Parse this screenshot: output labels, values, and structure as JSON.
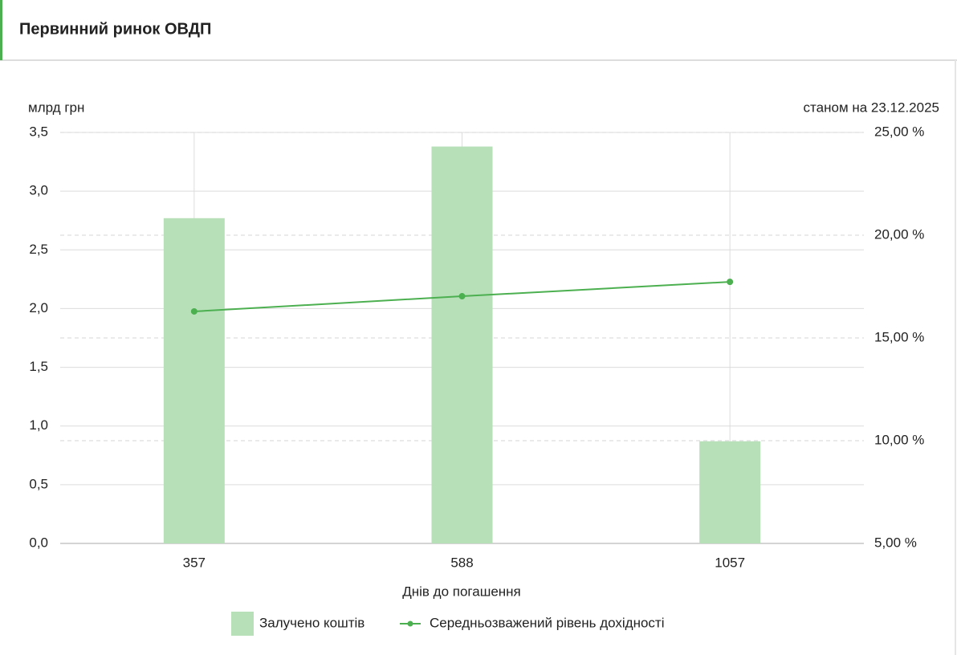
{
  "chart_data": {
    "type": "bar",
    "title": "Первинний ринок ОВДП",
    "y_label": "млрд грн",
    "annotation": "станом на 23.12.2025",
    "x_label": "Днів до погашення",
    "categories": [
      "357",
      "588",
      "1057"
    ],
    "series": [
      {
        "name": "Залучено коштів",
        "type": "bar",
        "color": "#b7e0b9",
        "values": [
          2.77,
          3.38,
          0.87
        ]
      },
      {
        "name": "Середньозважений рівень дохідності",
        "type": "line",
        "color": "#4caf50",
        "axis": "y2",
        "values": [
          16.29,
          17.03,
          17.73
        ]
      }
    ],
    "ylim": [
      0,
      3.5
    ],
    "yticks": [
      {
        "value": 0,
        "label": "0,0"
      },
      {
        "value": 0.5,
        "label": "0,5"
      },
      {
        "value": 1,
        "label": "1,0"
      },
      {
        "value": 1.5,
        "label": "1,5"
      },
      {
        "value": 2,
        "label": "2,0"
      },
      {
        "value": 2.5,
        "label": "2,5"
      },
      {
        "value": 3,
        "label": "3,0"
      },
      {
        "value": 3.5,
        "label": "3,5"
      }
    ],
    "y2lim": [
      5,
      25
    ],
    "y2ticks": [
      {
        "value": 5,
        "label": "5,00 %"
      },
      {
        "value": 10,
        "label": "10,00 %"
      },
      {
        "value": 15,
        "label": "15,00 %"
      },
      {
        "value": 20,
        "label": "20,00 %"
      },
      {
        "value": 25,
        "label": "25,00 %"
      }
    ],
    "grid": true,
    "legend": "bottom"
  }
}
